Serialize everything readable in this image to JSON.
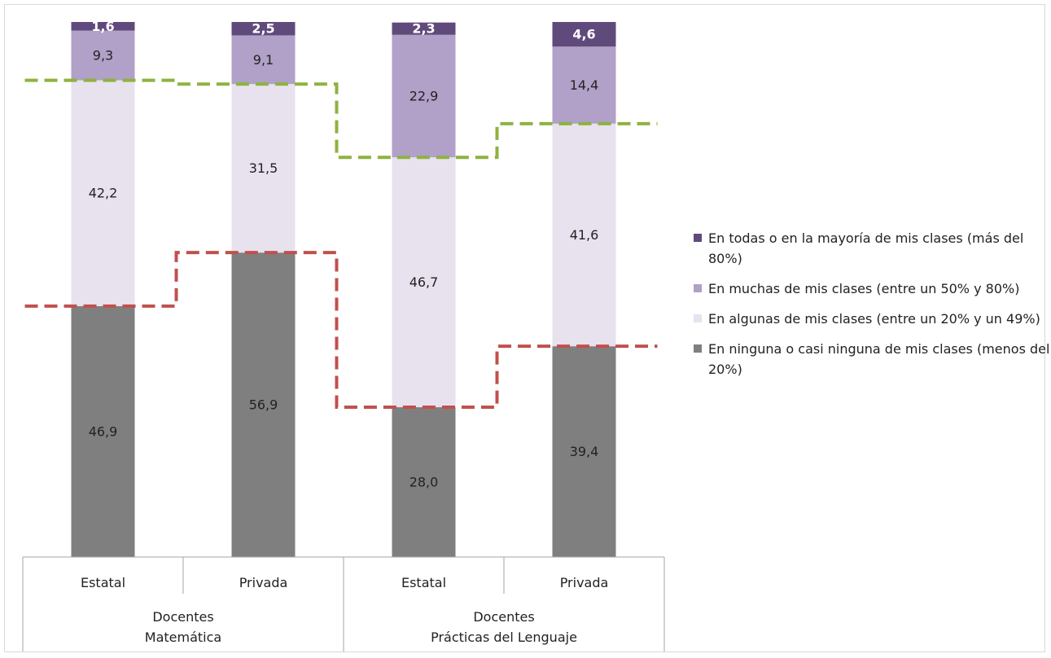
{
  "chart_data": {
    "type": "bar",
    "stacked": true,
    "percent": true,
    "categories": [
      "Estatal",
      "Privada",
      "Estatal",
      "Privada"
    ],
    "groups": [
      {
        "label": "Docentes\nMatemática",
        "categories": [
          "Estatal",
          "Privada"
        ]
      },
      {
        "label": "Docentes\nPrácticas del Lenguaje",
        "categories": [
          "Estatal",
          "Privada"
        ]
      }
    ],
    "series": [
      {
        "name": "En ninguna o casi ninguna de mis clases (menos del 20%)",
        "color": "#7f7f7f",
        "label_color": "#222222",
        "values": [
          46.9,
          56.9,
          28.0,
          39.4
        ],
        "labels": [
          "46,9",
          "56,9",
          "28,0",
          "39,4"
        ]
      },
      {
        "name": "En algunas de mis clases (entre un 20% y un 49%)",
        "color": "#e8e2ef",
        "label_color": "#222222",
        "values": [
          42.2,
          31.5,
          46.7,
          41.6
        ],
        "labels": [
          "42,2",
          "31,5",
          "46,7",
          "41,6"
        ]
      },
      {
        "name": "En muchas de mis clases (entre un 50% y 80%)",
        "color": "#b1a0c7",
        "label_color": "#222222",
        "values": [
          9.3,
          9.1,
          22.9,
          14.4
        ],
        "labels": [
          "9,3",
          "9,1",
          "22,9",
          "14,4"
        ]
      },
      {
        "name": "En todas o en la mayoría de mis clases (más del 80%)",
        "color": "#604a7b",
        "label_color": "#ffffff",
        "values": [
          1.6,
          2.5,
          2.3,
          4.6
        ],
        "labels": [
          "1,6",
          "2,5",
          "2,3",
          "4,6"
        ]
      }
    ],
    "ylim": [
      0,
      100
    ],
    "grid": false,
    "legend_position": "right",
    "reference_lines": [
      {
        "style": "dashed",
        "color": "#8db33f"
      },
      {
        "style": "dashed",
        "color": "#c0504d"
      }
    ]
  }
}
